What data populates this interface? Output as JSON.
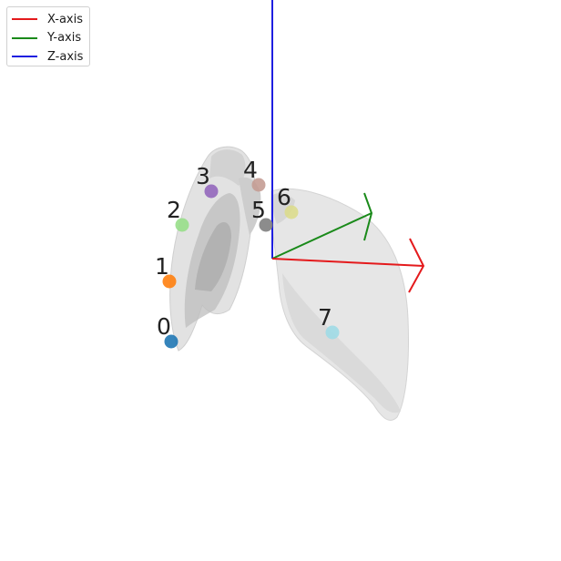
{
  "legend": {
    "items": [
      {
        "label": "X-axis",
        "color": "#e41a1c"
      },
      {
        "label": "Y-axis",
        "color": "#1a8a1a"
      },
      {
        "label": "Z-axis",
        "color": "#1f1fe0"
      }
    ]
  },
  "points": [
    {
      "label": "0",
      "color": "#1f77b4"
    },
    {
      "label": "1",
      "color": "#ff7f0e"
    },
    {
      "label": "2",
      "color": "#98df8a"
    },
    {
      "label": "3",
      "color": "#9467bd"
    },
    {
      "label": "4",
      "color": "#c49c94"
    },
    {
      "label": "5",
      "color": "#7f7f7f"
    },
    {
      "label": "6",
      "color": "#dbdb8d"
    },
    {
      "label": "7",
      "color": "#9edae5"
    }
  ]
}
